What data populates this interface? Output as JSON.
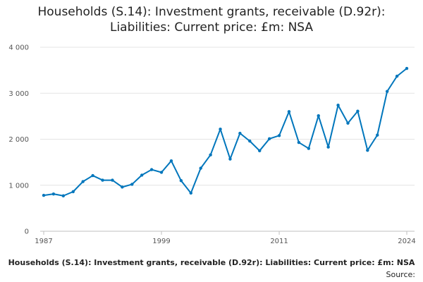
{
  "chart_data": {
    "type": "line",
    "title_lines": [
      "Households (S.14): Investment grants, receivable (D.92r):",
      "Liabilities: Current price: £m: NSA"
    ],
    "x_tick_labels": [
      "1987",
      "1999",
      "2011",
      "2024"
    ],
    "x_ticks": [
      1987,
      1999,
      2011,
      2024
    ],
    "y_tick_labels": [
      "0",
      "1 000",
      "2 000",
      "3 000",
      "4 000"
    ],
    "y_ticks": [
      0,
      1000,
      2000,
      3000,
      4000
    ],
    "xlim": [
      1987,
      2024
    ],
    "ylim": [
      0,
      4000
    ],
    "series": [
      {
        "name": "Households (S.14): Investment grants, receivable (D.92r): Liabilities: Current price: £m: NSA",
        "color": "#0076bc",
        "x": [
          1987,
          1988,
          1989,
          1990,
          1991,
          1992,
          1993,
          1994,
          1995,
          1996,
          1997,
          1998,
          1999,
          2000,
          2001,
          2002,
          2003,
          2004,
          2005,
          2006,
          2007,
          2008,
          2009,
          2010,
          2011,
          2012,
          2013,
          2014,
          2015,
          2016,
          2017,
          2018,
          2019,
          2020,
          2021,
          2022,
          2023,
          2024
        ],
        "values": [
          780,
          810,
          770,
          860,
          1080,
          1210,
          1110,
          1110,
          960,
          1020,
          1220,
          1340,
          1280,
          1530,
          1100,
          830,
          1370,
          1660,
          2220,
          1570,
          2130,
          1960,
          1750,
          2010,
          2080,
          2600,
          1930,
          1800,
          2510,
          1830,
          2740,
          2350,
          2610,
          1760,
          2090,
          3040,
          3370,
          3540
        ]
      }
    ]
  },
  "footer": {
    "series_title": "Households (S.14): Investment grants, receivable (D.92r): Liabilities: Current price: £m: NSA",
    "source_label": "Source:"
  }
}
